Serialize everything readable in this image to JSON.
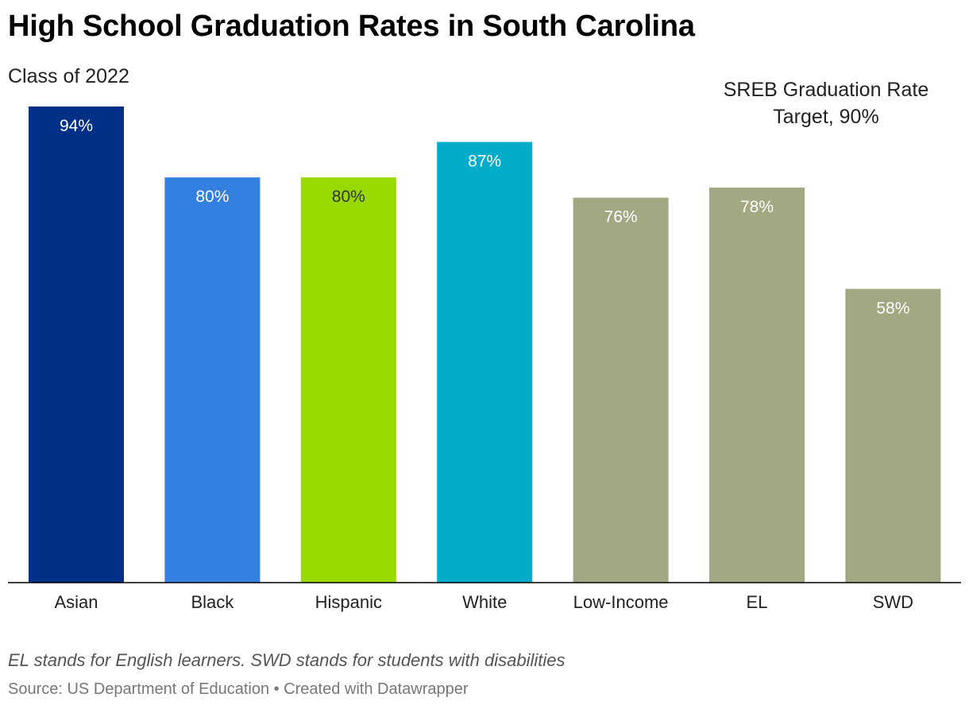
{
  "header": {
    "title": "High School Graduation Rates in South Carolina",
    "subtitle": "Class of 2022"
  },
  "annotation": {
    "line1": "SREB Graduation Rate",
    "line2": "Target, 90%"
  },
  "footer": {
    "note": "EL stands for English learners. SWD stands for students with disabilities",
    "source": "Source: US Department of Education • Created with Datawrapper"
  },
  "chart_data": {
    "type": "bar",
    "title": "High School Graduation Rates in South Carolina",
    "subtitle": "Class of 2022",
    "categories": [
      "Asian",
      "Black",
      "Hispanic",
      "White",
      "Low-Income",
      "EL",
      "SWD"
    ],
    "values": [
      94,
      80,
      80,
      87,
      76,
      78,
      58
    ],
    "value_labels": [
      "94%",
      "80%",
      "80%",
      "87%",
      "76%",
      "78%",
      "58%"
    ],
    "colors": [
      "#002f87",
      "#3380e0",
      "#99d800",
      "#00acc8",
      "#a3a883",
      "#a3a883",
      "#a3a883"
    ],
    "label_colors": [
      "#ffffff",
      "#ffffff",
      "#333333",
      "#ffffff",
      "#ffffff",
      "#ffffff",
      "#ffffff"
    ],
    "ylim": [
      0,
      94
    ],
    "grid": false,
    "target": {
      "value": 90,
      "text": "SREB Graduation Rate Target, 90%"
    }
  }
}
